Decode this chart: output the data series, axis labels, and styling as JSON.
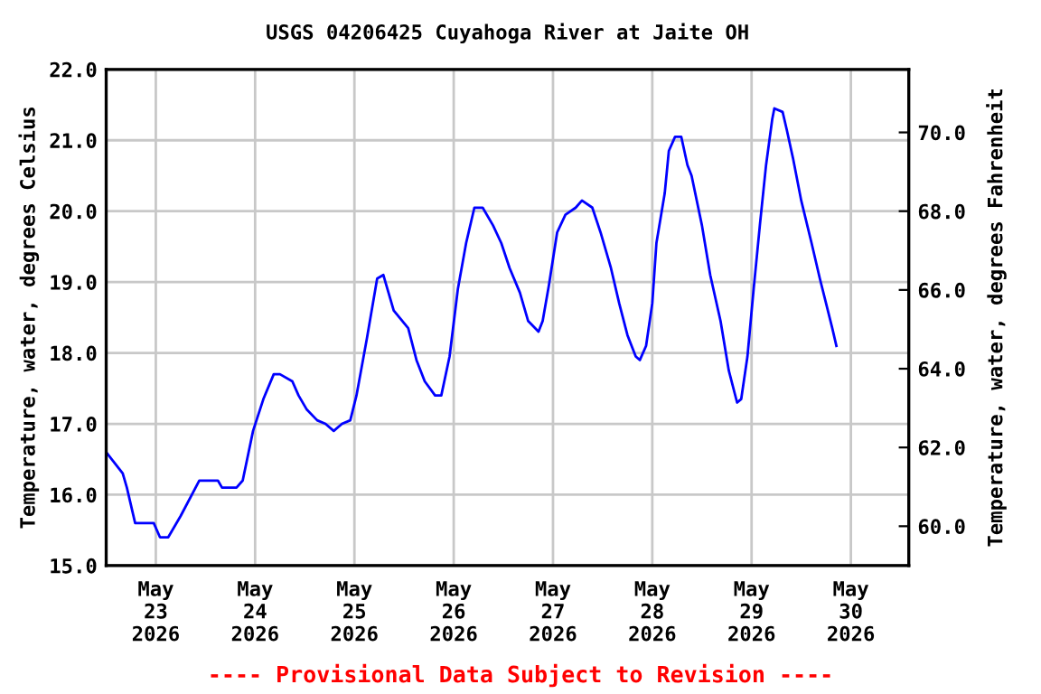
{
  "chart_data": {
    "type": "line",
    "title": "USGS 04206425 Cuyahoga River at Jaite OH",
    "ylabel": "Temperature, water, degrees Celsius",
    "y2label": "Temperature, water, degrees Fahrenheit",
    "annotations": [
      "---- Provisional Data Subject to Revision ----"
    ],
    "xlim": [
      "2026-05-22T12:00",
      "2026-05-30T14:00"
    ],
    "xticks": [
      {
        "value": "2026-05-23",
        "label": "May\n23\n2026"
      },
      {
        "value": "2026-05-24",
        "label": "May\n24\n2026"
      },
      {
        "value": "2026-05-25",
        "label": "May\n25\n2026"
      },
      {
        "value": "2026-05-26",
        "label": "May\n26\n2026"
      },
      {
        "value": "2026-05-27",
        "label": "May\n27\n2026"
      },
      {
        "value": "2026-05-28",
        "label": "May\n28\n2026"
      },
      {
        "value": "2026-05-29",
        "label": "May\n29\n2026"
      },
      {
        "value": "2026-05-30",
        "label": "May\n30\n2026"
      }
    ],
    "ylim": [
      15.0,
      22.0
    ],
    "yticks": [
      {
        "value": 15,
        "label": "15.0"
      },
      {
        "value": 16,
        "label": "16.0"
      },
      {
        "value": 17,
        "label": "17.0"
      },
      {
        "value": 18,
        "label": "18.0"
      },
      {
        "value": 19,
        "label": "19.0"
      },
      {
        "value": 20,
        "label": "20.0"
      },
      {
        "value": 21,
        "label": "21.0"
      },
      {
        "value": 22,
        "label": "22.0"
      }
    ],
    "y2lim": [
      59.0,
      71.6
    ],
    "y2ticks": [
      {
        "value": 60,
        "label": "60.0"
      },
      {
        "value": 62,
        "label": "62.0"
      },
      {
        "value": 64,
        "label": "64.0"
      },
      {
        "value": 66,
        "label": "66.0"
      },
      {
        "value": 68,
        "label": "68.0"
      },
      {
        "value": 70,
        "label": "70.0"
      }
    ],
    "grid": true,
    "line_style": "solid",
    "series": [
      {
        "color": "#0000ff",
        "x": [
          "2026-05-22T12:00",
          "2026-05-22T14:00",
          "2026-05-22T16:00",
          "2026-05-22T17:00",
          "2026-05-22T19:00",
          "2026-05-22T23:30",
          "2026-05-23T01:00",
          "2026-05-23T03:00",
          "2026-05-23T06:00",
          "2026-05-23T10:30",
          "2026-05-23T12:30",
          "2026-05-23T15:00",
          "2026-05-23T16:00",
          "2026-05-23T19:30",
          "2026-05-23T21:00",
          "2026-05-23T23:30",
          "2026-05-24T02:00",
          "2026-05-24T04:30",
          "2026-05-24T06:00",
          "2026-05-24T09:00",
          "2026-05-24T10:30",
          "2026-05-24T12:30",
          "2026-05-24T15:00",
          "2026-05-24T17:00",
          "2026-05-24T19:00",
          "2026-05-24T21:00",
          "2026-05-24T23:00",
          "2026-05-25T00:30",
          "2026-05-25T03:00",
          "2026-05-25T05:30",
          "2026-05-25T07:00",
          "2026-05-25T09:30",
          "2026-05-25T13:00",
          "2026-05-25T15:00",
          "2026-05-25T17:00",
          "2026-05-25T19:30",
          "2026-05-25T21:00",
          "2026-05-25T23:00",
          "2026-05-26T01:00",
          "2026-05-26T03:00",
          "2026-05-26T05:00",
          "2026-05-26T07:00",
          "2026-05-26T09:30",
          "2026-05-26T11:30",
          "2026-05-26T13:30",
          "2026-05-26T16:00",
          "2026-05-26T18:00",
          "2026-05-26T20:30",
          "2026-05-26T21:30",
          "2026-05-26T23:00",
          "2026-05-27T01:00",
          "2026-05-27T03:00",
          "2026-05-27T05:30",
          "2026-05-27T07:00",
          "2026-05-27T09:30",
          "2026-05-27T11:30",
          "2026-05-27T14:00",
          "2026-05-27T16:00",
          "2026-05-27T18:00",
          "2026-05-27T20:00",
          "2026-05-27T21:00",
          "2026-05-27T22:30",
          "2026-05-28T00:00",
          "2026-05-28T01:00",
          "2026-05-28T03:00",
          "2026-05-28T04:00",
          "2026-05-28T05:30",
          "2026-05-28T07:00",
          "2026-05-28T08:30",
          "2026-05-28T09:30",
          "2026-05-28T12:00",
          "2026-05-28T14:00",
          "2026-05-28T16:30",
          "2026-05-28T18:30",
          "2026-05-28T20:30",
          "2026-05-28T21:30",
          "2026-05-28T23:00",
          "2026-05-29T00:30",
          "2026-05-29T02:00",
          "2026-05-29T03:30",
          "2026-05-29T05:00",
          "2026-05-29T05:30",
          "2026-05-29T07:30",
          "2026-05-29T08:30",
          "2026-05-29T10:00",
          "2026-05-29T12:00",
          "2026-05-29T14:30",
          "2026-05-29T16:30",
          "2026-05-29T18:00",
          "2026-05-29T19:30",
          "2026-05-29T20:30"
        ],
        "values": [
          16.6,
          16.45,
          16.3,
          16.1,
          15.6,
          15.6,
          15.4,
          15.4,
          15.7,
          16.2,
          16.2,
          16.2,
          16.1,
          16.1,
          16.2,
          16.9,
          17.35,
          17.7,
          17.7,
          17.6,
          17.4,
          17.2,
          17.05,
          17.0,
          16.9,
          17.0,
          17.05,
          17.4,
          18.2,
          19.05,
          19.1,
          18.6,
          18.35,
          17.9,
          17.6,
          17.4,
          17.4,
          17.95,
          18.9,
          19.55,
          20.05,
          20.05,
          19.8,
          19.55,
          19.2,
          18.85,
          18.45,
          18.3,
          18.45,
          18.95,
          19.7,
          19.95,
          20.05,
          20.15,
          20.05,
          19.7,
          19.2,
          18.7,
          18.25,
          17.95,
          17.9,
          18.1,
          18.7,
          19.55,
          20.25,
          20.85,
          21.05,
          21.05,
          20.65,
          20.5,
          19.8,
          19.1,
          18.45,
          17.75,
          17.3,
          17.35,
          17.95,
          18.9,
          19.8,
          20.65,
          21.3,
          21.45,
          21.4,
          21.15,
          20.75,
          20.15,
          19.55,
          19.05,
          18.7,
          18.35,
          18.1
        ]
      }
    ]
  }
}
